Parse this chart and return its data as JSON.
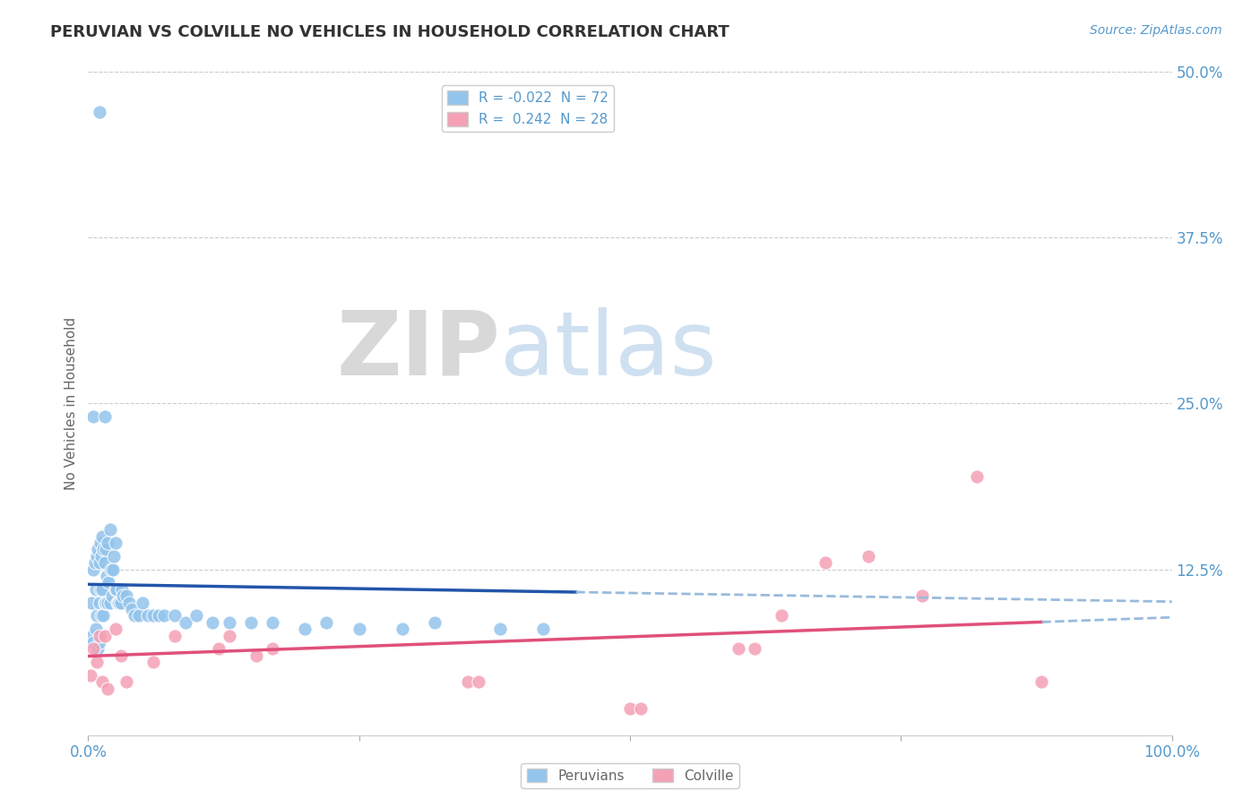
{
  "title": "PERUVIAN VS COLVILLE NO VEHICLES IN HOUSEHOLD CORRELATION CHART",
  "source": "Source: ZipAtlas.com",
  "ylabel": "No Vehicles in Household",
  "xlim": [
    0.0,
    1.0
  ],
  "ylim": [
    0.0,
    0.5
  ],
  "xticklabels_show": [
    "0.0%",
    "100.0%"
  ],
  "xticklabels_pos": [
    0.0,
    1.0
  ],
  "ytick_right_labels": [
    "50.0%",
    "37.5%",
    "25.0%",
    "12.5%"
  ],
  "ytick_right_values": [
    0.5,
    0.375,
    0.25,
    0.125
  ],
  "grid_color": "#cccccc",
  "background_color": "#ffffff",
  "peruvian_color": "#93c4ec",
  "colville_color": "#f4a0b5",
  "peruvian_line_color": "#2255aa",
  "colville_line_color": "#e0507a",
  "dashed_line_color": "#99bbdd",
  "title_color": "#333333",
  "axis_color": "#5599cc",
  "label_color": "#666666",
  "peruvian_R": -0.022,
  "peruvian_N": 72,
  "colville_R": 0.242,
  "colville_N": 28,
  "px": [
    0.003,
    0.004,
    0.005,
    0.005,
    0.006,
    0.007,
    0.007,
    0.008,
    0.008,
    0.009,
    0.009,
    0.01,
    0.01,
    0.01,
    0.011,
    0.011,
    0.012,
    0.012,
    0.013,
    0.013,
    0.014,
    0.014,
    0.015,
    0.015,
    0.016,
    0.016,
    0.017,
    0.018,
    0.018,
    0.019,
    0.02,
    0.02,
    0.021,
    0.022,
    0.023,
    0.024,
    0.025,
    0.025,
    0.026,
    0.027,
    0.028,
    0.029,
    0.03,
    0.031,
    0.032,
    0.035,
    0.038,
    0.04,
    0.043,
    0.047,
    0.05,
    0.055,
    0.06,
    0.065,
    0.07,
    0.08,
    0.09,
    0.1,
    0.115,
    0.13,
    0.15,
    0.17,
    0.2,
    0.22,
    0.25,
    0.29,
    0.32,
    0.38,
    0.42,
    0.005,
    0.01,
    0.015
  ],
  "py": [
    0.1,
    0.075,
    0.125,
    0.07,
    0.13,
    0.11,
    0.08,
    0.135,
    0.09,
    0.14,
    0.065,
    0.13,
    0.1,
    0.07,
    0.145,
    0.11,
    0.135,
    0.09,
    0.15,
    0.11,
    0.14,
    0.09,
    0.13,
    0.1,
    0.14,
    0.1,
    0.12,
    0.145,
    0.1,
    0.115,
    0.155,
    0.1,
    0.125,
    0.105,
    0.125,
    0.135,
    0.145,
    0.11,
    0.11,
    0.1,
    0.1,
    0.1,
    0.1,
    0.11,
    0.105,
    0.105,
    0.1,
    0.095,
    0.09,
    0.09,
    0.1,
    0.09,
    0.09,
    0.09,
    0.09,
    0.09,
    0.085,
    0.09,
    0.085,
    0.085,
    0.085,
    0.085,
    0.08,
    0.085,
    0.08,
    0.08,
    0.085,
    0.08,
    0.08,
    0.24,
    0.47,
    0.24
  ],
  "qx": [
    0.002,
    0.005,
    0.008,
    0.01,
    0.013,
    0.015,
    0.018,
    0.025,
    0.03,
    0.035,
    0.06,
    0.08,
    0.12,
    0.13,
    0.155,
    0.17,
    0.35,
    0.36,
    0.5,
    0.51,
    0.6,
    0.615,
    0.64,
    0.68,
    0.72,
    0.77,
    0.82,
    0.88
  ],
  "qy": [
    0.045,
    0.065,
    0.055,
    0.075,
    0.04,
    0.075,
    0.035,
    0.08,
    0.06,
    0.04,
    0.055,
    0.075,
    0.065,
    0.075,
    0.06,
    0.065,
    0.04,
    0.04,
    0.02,
    0.02,
    0.065,
    0.065,
    0.09,
    0.13,
    0.135,
    0.105,
    0.195,
    0.04
  ]
}
